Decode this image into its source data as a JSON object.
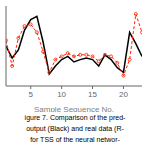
{
  "chart_data": {
    "type": "line",
    "xlabel": "Sample Sequence No.",
    "annotations": [
      "igure 7. Comparison of the pred-",
      "output (Black) and real data (R-",
      "for TSS of the neural networ-"
    ],
    "x": [
      1,
      2,
      3,
      4,
      5,
      6,
      7,
      8,
      9,
      10,
      11,
      12,
      13,
      14,
      15,
      16,
      17,
      18,
      19,
      20,
      21,
      22,
      23
    ],
    "series": [
      {
        "color": "#000000",
        "line_style": "solid",
        "values": [
          0.55,
          0.4,
          0.5,
          0.75,
          0.88,
          0.92,
          0.6,
          0.2,
          0.3,
          0.38,
          0.42,
          0.35,
          0.38,
          0.4,
          0.38,
          0.3,
          0.44,
          0.38,
          0.28,
          0.22,
          0.72,
          0.58,
          0.42
        ]
      },
      {
        "color": "#ff2200",
        "line_style": "dashed",
        "marker": "circle",
        "values": [
          0.62,
          0.3,
          0.65,
          0.8,
          0.82,
          0.72,
          0.48,
          0.22,
          0.38,
          0.42,
          0.46,
          0.42,
          0.44,
          0.44,
          0.42,
          0.36,
          0.44,
          0.42,
          0.34,
          0.18,
          0.38,
          0.95,
          0.72
        ]
      }
    ],
    "xlim": [
      1,
      23
    ],
    "xticks": [
      5,
      10,
      15,
      20
    ],
    "ylim": [
      0.05,
      1.05
    ],
    "tick_labels": "x",
    "grid": false
  }
}
